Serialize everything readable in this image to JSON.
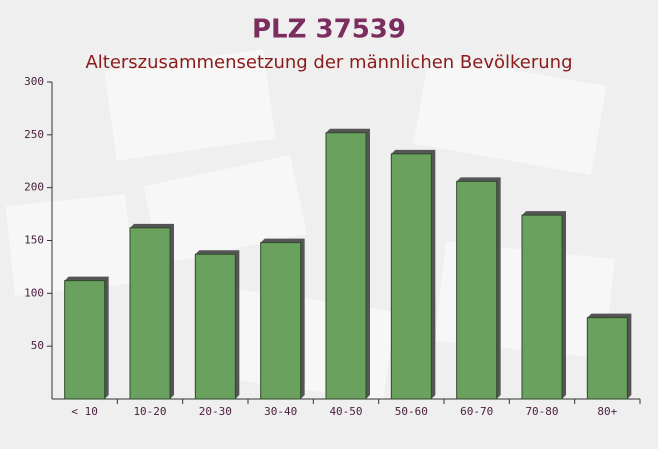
{
  "chart_data": {
    "type": "bar",
    "title": "PLZ 37539",
    "subtitle": "Alterszusammensetzung der männlichen Bevölkerung",
    "categories": [
      "< 10",
      "10-20",
      "20-30",
      "30-40",
      "40-50",
      "50-60",
      "60-70",
      "70-80",
      "80+"
    ],
    "values": [
      112,
      162,
      137,
      148,
      252,
      232,
      206,
      174,
      77
    ],
    "color": "#6aa15e",
    "ylim": [
      0,
      300
    ],
    "yticks": [
      50,
      100,
      150,
      200,
      250,
      300
    ]
  }
}
